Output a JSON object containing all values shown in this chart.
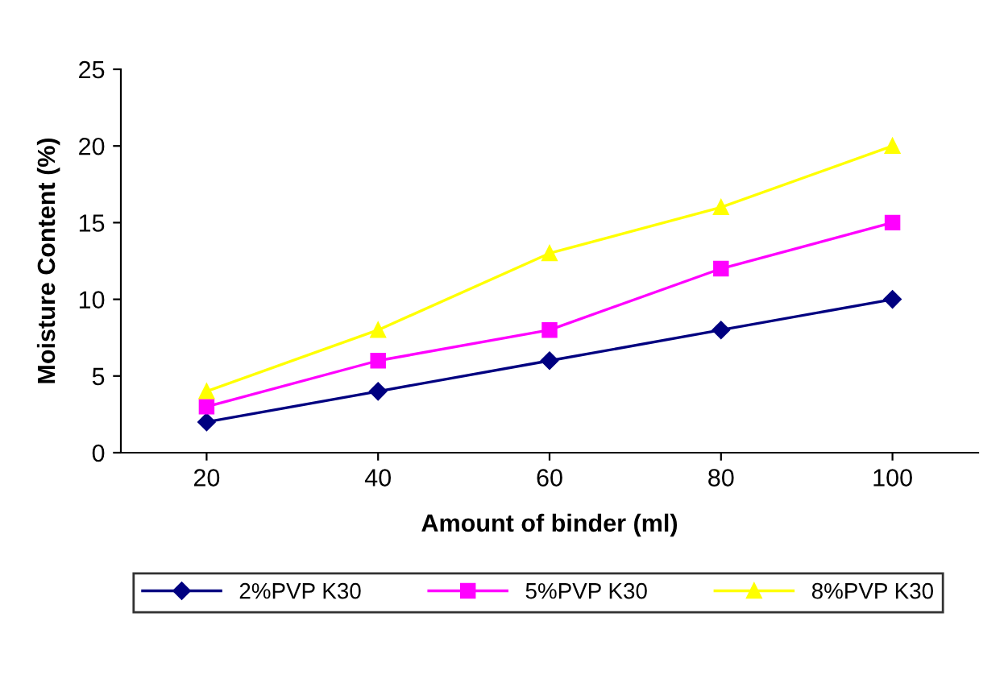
{
  "chart_data": {
    "type": "line",
    "xlabel": "Amount of binder (ml)",
    "ylabel": "Moisture Content (%)",
    "categories": [
      "20",
      "40",
      "60",
      "80",
      "100"
    ],
    "series": [
      {
        "name": "2%PVP K30",
        "color": "#000080",
        "marker": "diamond",
        "values": [
          2,
          4,
          6,
          8,
          10
        ]
      },
      {
        "name": "5%PVP K30",
        "color": "#ff00ff",
        "marker": "square",
        "values": [
          3,
          6,
          8,
          12,
          15
        ]
      },
      {
        "name": "8%PVP K30",
        "color": "#ffff00",
        "marker": "triangle",
        "values": [
          4,
          8,
          13,
          16,
          20
        ]
      }
    ],
    "ylim": [
      0,
      25
    ],
    "yticks": [
      0,
      5,
      10,
      15,
      20,
      25
    ],
    "grid": false,
    "legend": "bottom",
    "line_style": "solid"
  }
}
